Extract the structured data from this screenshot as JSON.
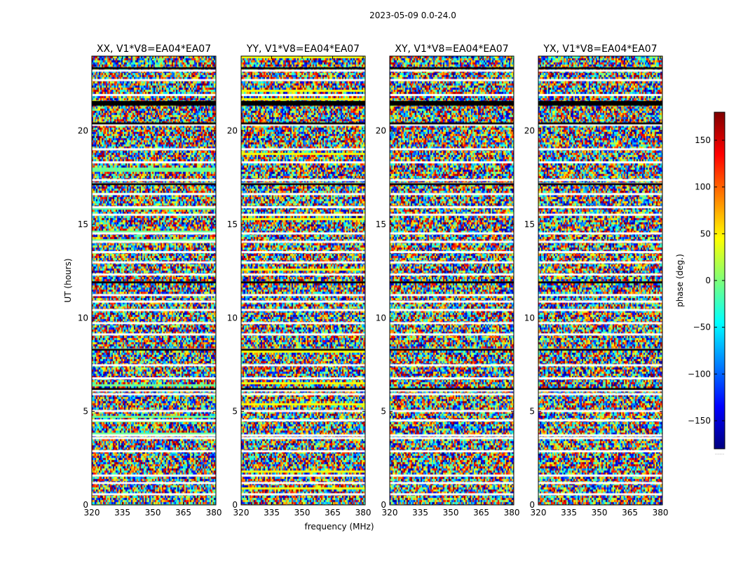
{
  "suptitle": "2023-05-09 0.0-24.0",
  "chart_data": {
    "type": "heatmap",
    "title": "2023-05-09 0.0-24.0",
    "xlabel": "frequency (MHz)",
    "ylabel": "UT (hours)",
    "xlim": [
      320,
      381
    ],
    "ylim": [
      0,
      24
    ],
    "xticks": [
      320,
      335,
      350,
      365,
      380
    ],
    "yticks": [
      0,
      5,
      10,
      15,
      20
    ],
    "colorbar": {
      "label": "phase (deg.)",
      "range": [
        -180,
        180
      ],
      "ticks": [
        -150,
        -100,
        -50,
        0,
        50,
        100,
        150
      ],
      "tick_labels": [
        "−150",
        "−100",
        "−50",
        "0",
        "50",
        "100",
        "150"
      ],
      "colormap": "jet",
      "footer": "......"
    },
    "panels": [
      {
        "title": "XX, V1*V8=EA04*EA07",
        "pol": "XX"
      },
      {
        "title": "YY, V1*V8=EA04*EA07",
        "pol": "YY"
      },
      {
        "title": "XY, V1*V8=EA04*EA07",
        "pol": "XY"
      },
      {
        "title": "YX, V1*V8=EA04*EA07",
        "pol": "YX"
      }
    ],
    "gap_hours": [
      0.55,
      1.15,
      1.55,
      2.85,
      3.55,
      3.7,
      4.5,
      5.0,
      5.9,
      6.1,
      6.75,
      7.45,
      8.3,
      9.1,
      9.7,
      10.4,
      10.85,
      11.2,
      12.3,
      12.95,
      13.5,
      14.05,
      14.5,
      15.5,
      15.9,
      16.6,
      17.15,
      17.35,
      18.3,
      19.0,
      20.3,
      21.9,
      22.7,
      23.2
    ],
    "flagged_bands_hours": [
      [
        6.15,
        6.25
      ],
      [
        8.25,
        8.35
      ],
      [
        11.85,
        11.95
      ],
      [
        17.1,
        17.2
      ],
      [
        20.35,
        20.45
      ],
      [
        21.35,
        21.6
      ],
      [
        23.3,
        23.4
      ]
    ]
  }
}
